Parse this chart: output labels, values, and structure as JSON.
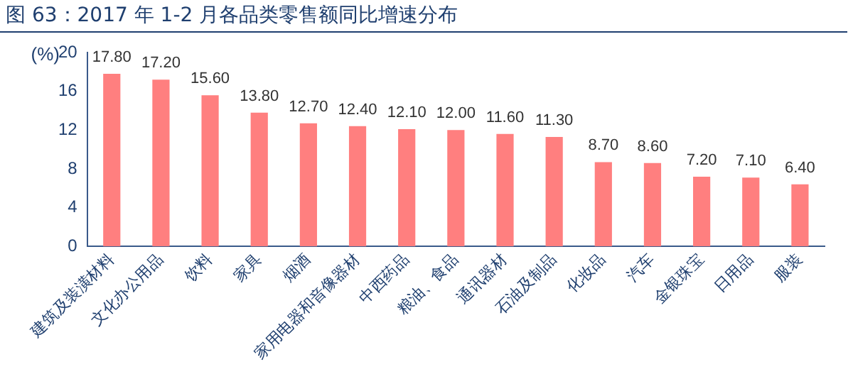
{
  "chart_data": {
    "type": "bar",
    "title": "图 63：2017 年 1-2 月各品类零售额同比增速分布",
    "ylabel": "(%)",
    "categories": [
      "建筑及装潢材料",
      "文化办公用品",
      "饮料",
      "家具",
      "烟酒",
      "家用电器和音像器材",
      "中西药品",
      "粮油、食品",
      "通讯器材",
      "石油及制品",
      "化妆品",
      "汽车",
      "金银珠宝",
      "日用品",
      "服装"
    ],
    "values": [
      17.8,
      17.2,
      15.6,
      13.8,
      12.7,
      12.4,
      12.1,
      12.0,
      11.6,
      11.3,
      8.7,
      8.6,
      7.2,
      7.1,
      6.4
    ],
    "value_labels": [
      "17.80",
      "17.20",
      "15.60",
      "13.80",
      "12.70",
      "12.40",
      "12.10",
      "12.00",
      "11.60",
      "11.30",
      "8.70",
      "8.60",
      "7.20",
      "7.10",
      "6.40"
    ],
    "color": "#ff7f7f",
    "ylim": [
      0,
      20
    ],
    "yticks": [
      0,
      4,
      8,
      12,
      16,
      20
    ],
    "grid": false,
    "legend": false
  }
}
